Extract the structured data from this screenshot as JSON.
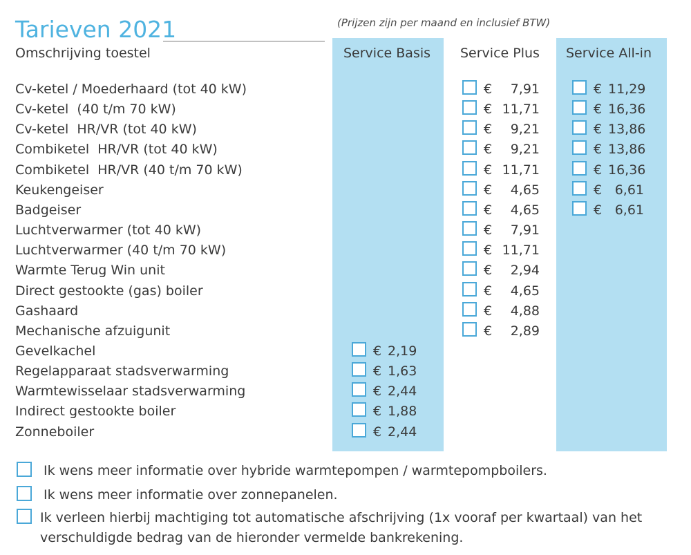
{
  "header": {
    "title": "Tarieven 2021",
    "note": "(Prijzen zijn per maand en inclusief BTW)",
    "description_heading": "Omschrijving toestel"
  },
  "colors": {
    "accent": "#4fb3e0",
    "column_highlight": "#b3dff2",
    "checkbox_border": "#4aa8d8"
  },
  "columns": [
    "Service Basis",
    "Service Plus",
    "Service All-in"
  ],
  "currency": "€",
  "rows": [
    {
      "desc": "Cv-ketel / Moederhaard (tot 40 kW)",
      "basis": null,
      "plus": "7,91",
      "allin": "11,29"
    },
    {
      "desc": "Cv-ketel  (40 t/m 70 kW)",
      "basis": null,
      "plus": "11,71",
      "allin": "16,36"
    },
    {
      "desc": "Cv-ketel  HR/VR (tot 40 kW)",
      "basis": null,
      "plus": "9,21",
      "allin": "13,86"
    },
    {
      "desc": "Combiketel  HR/VR (tot 40 kW)",
      "basis": null,
      "plus": "9,21",
      "allin": "13,86"
    },
    {
      "desc": "Combiketel  HR/VR (40 t/m 70 kW)",
      "basis": null,
      "plus": "11,71",
      "allin": "16,36"
    },
    {
      "desc": "Keukengeiser",
      "basis": null,
      "plus": "4,65",
      "allin": "6,61"
    },
    {
      "desc": "Badgeiser",
      "basis": null,
      "plus": "4,65",
      "allin": "6,61"
    },
    {
      "desc": "Luchtverwarmer (tot 40 kW)",
      "basis": null,
      "plus": "7,91",
      "allin": null
    },
    {
      "desc": "Luchtverwarmer (40 t/m 70 kW)",
      "basis": null,
      "plus": "11,71",
      "allin": null
    },
    {
      "desc": "Warmte Terug Win unit",
      "basis": null,
      "plus": "2,94",
      "allin": null
    },
    {
      "desc": "Direct gestookte (gas) boiler",
      "basis": null,
      "plus": "4,65",
      "allin": null
    },
    {
      "desc": "Gashaard",
      "basis": null,
      "plus": "4,88",
      "allin": null
    },
    {
      "desc": "Mechanische afzuigunit",
      "basis": null,
      "plus": "2,89",
      "allin": null
    },
    {
      "desc": "Gevelkachel",
      "basis": "2,19",
      "plus": null,
      "allin": null
    },
    {
      "desc": "Regelapparaat stadsverwarming",
      "basis": "1,63",
      "plus": null,
      "allin": null
    },
    {
      "desc": "Warmtewisselaar stadsverwarming",
      "basis": "2,44",
      "plus": null,
      "allin": null
    },
    {
      "desc": "Indirect gestookte boiler",
      "basis": "1,88",
      "plus": null,
      "allin": null
    },
    {
      "desc": "Zonneboiler",
      "basis": "2,44",
      "plus": null,
      "allin": null
    }
  ],
  "options": [
    "Ik wens meer informatie over hybride warmtepompen / warmtepompboilers.",
    "Ik wens meer informatie over zonnepanelen.",
    "Ik verleen hierbij machtiging tot automatische afschrijving (1x vooraf per kwartaal) van het verschuldigde bedrag van de hieronder vermelde bankrekening."
  ]
}
